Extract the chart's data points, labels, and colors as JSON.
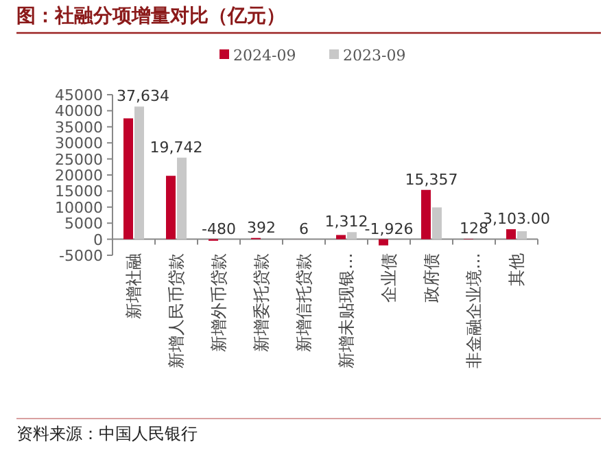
{
  "chart_data": {
    "type": "bar",
    "title": "图：社融分项增量对比（亿元）",
    "categories": [
      "新增社融",
      "新增人民币贷款",
      "新增外币贷款",
      "新增委托贷款",
      "新增信托贷款",
      "新增未贴现银…",
      "企业债",
      "政府债",
      "非金融企业境…",
      "其他"
    ],
    "series": [
      {
        "name": "2024-09",
        "color": "#c0002a",
        "values": [
          37634,
          19742,
          -480,
          392,
          6,
          1312,
          -1926,
          15357,
          128,
          3103
        ],
        "value_labels": [
          "37,634",
          "19,742",
          "-480",
          "392",
          "6",
          "1,312",
          "-1,926",
          "15,357",
          "128",
          "3,103.00"
        ]
      },
      {
        "name": "2023-09",
        "color": "#c8c8c8",
        "values": [
          41300,
          25400,
          null,
          null,
          null,
          2200,
          null,
          9900,
          null,
          2500
        ]
      }
    ],
    "ylim": [
      -5000,
      45000
    ],
    "yticks": [
      -5000,
      0,
      5000,
      10000,
      15000,
      20000,
      25000,
      30000,
      35000,
      40000,
      45000
    ],
    "legend": "top",
    "grid": false,
    "annotations": [
      "资料来源：中国人民银行"
    ]
  }
}
